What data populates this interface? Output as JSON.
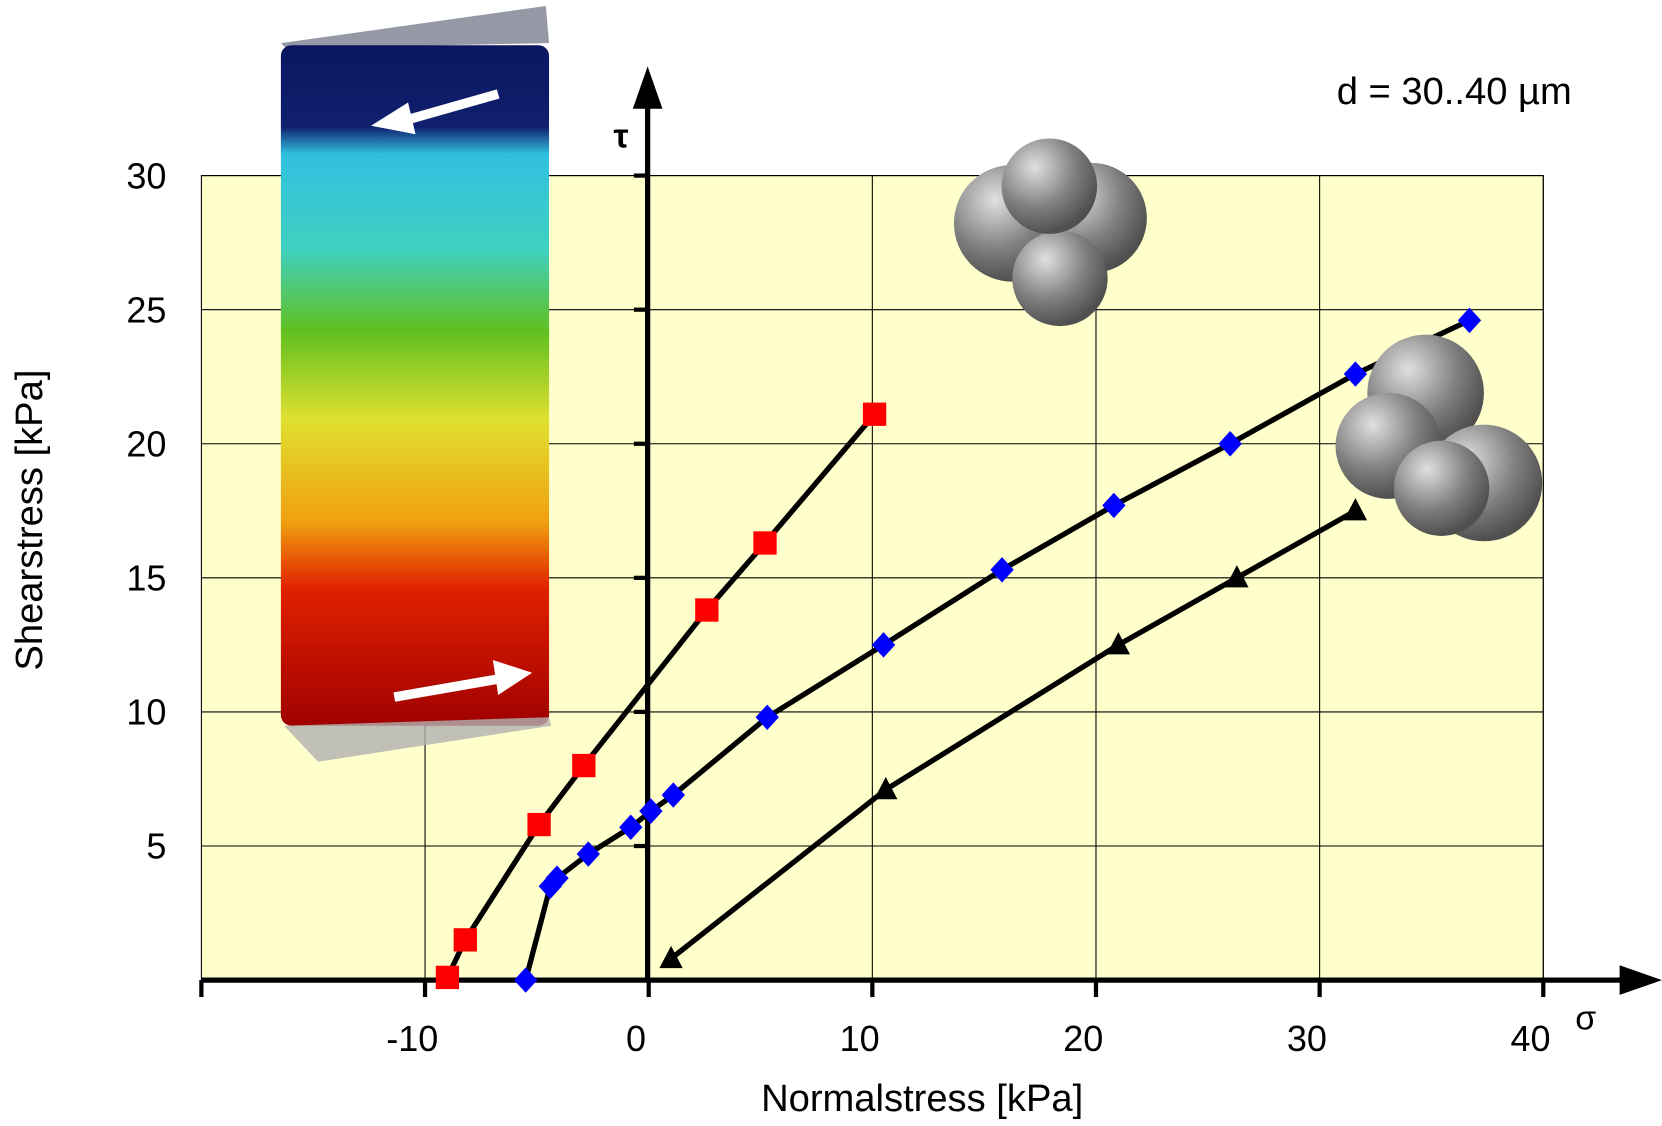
{
  "chart_data": {
    "type": "line",
    "annotation": "d = 30..40 µm",
    "x_label": "Normalstress [kPa]",
    "y_label": "Shearstress [kPa]",
    "x_axis_symbol": "σ",
    "y_axis_symbol": "τ",
    "xlim": [
      -20,
      40
    ],
    "ylim": [
      0,
      30
    ],
    "xticks": [
      -10,
      0,
      10,
      20,
      30,
      40
    ],
    "yticks": [
      5,
      10,
      15,
      20,
      25,
      30
    ],
    "grid": true,
    "background": "#ffffcc",
    "series": [
      {
        "color": "#ff0000",
        "marker": "square",
        "x": [
          -9.0,
          -8.2,
          -4.9,
          -2.9,
          2.6,
          5.2,
          10.1
        ],
        "values": [
          0.1,
          1.5,
          5.8,
          8.0,
          13.8,
          16.3,
          21.1
        ]
      },
      {
        "color": "#0000ff",
        "marker": "diamond",
        "x": [
          -5.5,
          -4.4,
          -4.1,
          -2.7,
          -0.8,
          0.1,
          1.1,
          5.3,
          10.5,
          15.8,
          20.8,
          26.0,
          31.6,
          36.7
        ],
        "values": [
          0.0,
          3.5,
          3.8,
          4.7,
          5.7,
          6.3,
          6.9,
          9.8,
          12.5,
          15.3,
          17.7,
          20.0,
          22.6,
          24.6
        ]
      },
      {
        "color": "#000000",
        "marker": "triangle",
        "x": [
          1.0,
          10.6,
          21.0,
          26.3,
          31.6
        ],
        "values": [
          0.8,
          7.1,
          12.5,
          15.0,
          17.5
        ]
      }
    ]
  }
}
